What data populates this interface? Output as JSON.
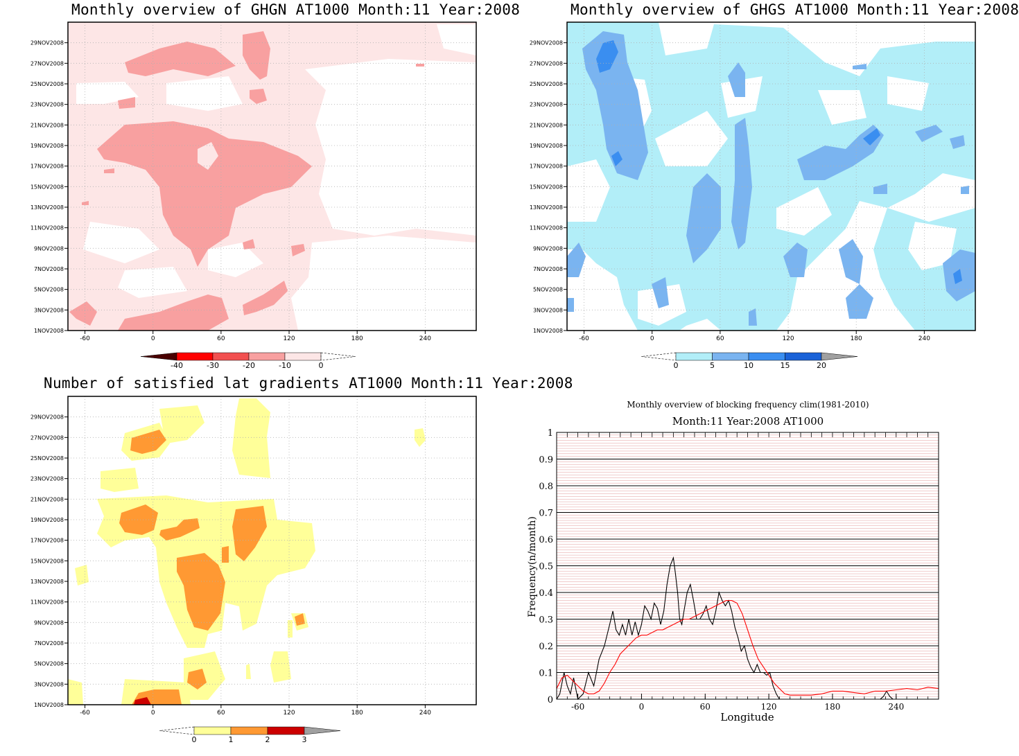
{
  "chart_data": [
    {
      "type": "heatmap",
      "title": "Monthly overview of GHGN AT1000 Month:11 Year:2008",
      "x_ticks": [
        "-60",
        "0",
        "60",
        "120",
        "180",
        "240"
      ],
      "xlim": [
        -75,
        285
      ],
      "y_ticks": [
        "1NOV2008",
        "3NOV2008",
        "5NOV2008",
        "7NOV2008",
        "9NOV2008",
        "11NOV2008",
        "13NOV2008",
        "15NOV2008",
        "17NOV2008",
        "19NOV2008",
        "21NOV2008",
        "23NOV2008",
        "25NOV2008",
        "27NOV2008",
        "29NOV2008"
      ],
      "colorbar": {
        "levels": [
          "-40",
          "-30",
          "-20",
          "-10",
          "0"
        ],
        "colors": [
          "#4a0000",
          "#ff0000",
          "#f25050",
          "#f8a0a0",
          "#fde6e6"
        ]
      },
      "grid": true
    },
    {
      "type": "heatmap",
      "title": "Monthly overview of GHGS AT1000 Month:11 Year:2008",
      "x_ticks": [
        "-60",
        "0",
        "60",
        "120",
        "180",
        "240"
      ],
      "xlim": [
        -75,
        285
      ],
      "y_ticks": [
        "1NOV2008",
        "3NOV2008",
        "5NOV2008",
        "7NOV2008",
        "9NOV2008",
        "11NOV2008",
        "13NOV2008",
        "15NOV2008",
        "17NOV2008",
        "19NOV2008",
        "21NOV2008",
        "23NOV2008",
        "25NOV2008",
        "27NOV2008",
        "29NOV2008"
      ],
      "colorbar": {
        "levels": [
          "0",
          "5",
          "10",
          "15",
          "20"
        ],
        "colors": [
          "#b2eef8",
          "#7ab4f0",
          "#3a8ef0",
          "#1a62d8",
          "#a0a0a0"
        ]
      },
      "grid": true
    },
    {
      "type": "heatmap",
      "title": "Number of satisfied lat gradients AT1000 Month:11 Year:2008",
      "x_ticks": [
        "-60",
        "0",
        "60",
        "120",
        "180",
        "240"
      ],
      "xlim": [
        -75,
        285
      ],
      "y_ticks": [
        "1NOV2008",
        "3NOV2008",
        "5NOV2008",
        "7NOV2008",
        "9NOV2008",
        "11NOV2008",
        "13NOV2008",
        "15NOV2008",
        "17NOV2008",
        "19NOV2008",
        "21NOV2008",
        "23NOV2008",
        "25NOV2008",
        "27NOV2008",
        "29NOV2008"
      ],
      "colorbar": {
        "levels": [
          "0",
          "1",
          "2",
          "3"
        ],
        "colors": [
          "#ffff99",
          "#ff9933",
          "#cc0000",
          "#a0a0a0"
        ]
      },
      "grid": true
    },
    {
      "type": "line",
      "title": "Monthly overview of blocking frequency clim(1981-2010)",
      "subtitle": "Month:11 Year:2008  AT1000",
      "xlabel": "Longitude",
      "ylabel": "Frequency(n/month)",
      "xlim": [
        -80,
        280
      ],
      "ylim": [
        0,
        1
      ],
      "x_ticks": [
        "-60",
        "0",
        "60",
        "120",
        "180",
        "240"
      ],
      "y_ticks": [
        "0",
        "0.1",
        "0.2",
        "0.3",
        "0.4",
        "0.5",
        "0.6",
        "0.7",
        "0.8",
        "0.9",
        "1"
      ],
      "series": [
        {
          "color": "#000000",
          "x": [
            -80,
            -77,
            -73,
            -70,
            -67,
            -64,
            -60,
            -55,
            -50,
            -45,
            -40,
            -35,
            -30,
            -27,
            -24,
            -21,
            -18,
            -15,
            -12,
            -9,
            -6,
            -3,
            0,
            3,
            6,
            9,
            12,
            15,
            18,
            21,
            24,
            27,
            30,
            32,
            34,
            36,
            38,
            40,
            43,
            46,
            49,
            52,
            55,
            58,
            61,
            64,
            67,
            70,
            73,
            76,
            79,
            82,
            85,
            88,
            91,
            94,
            97,
            100,
            103,
            106,
            109,
            112,
            115,
            118,
            121,
            124,
            127,
            130,
            135,
            140,
            150,
            160,
            170,
            180,
            190,
            200,
            210,
            215,
            220,
            225,
            228,
            231,
            234,
            237,
            240,
            250,
            260,
            270,
            280
          ],
          "y": [
            0.0,
            0.02,
            0.1,
            0.05,
            0.02,
            0.08,
            0.0,
            0.02,
            0.1,
            0.05,
            0.15,
            0.2,
            0.28,
            0.33,
            0.26,
            0.24,
            0.28,
            0.24,
            0.3,
            0.24,
            0.29,
            0.24,
            0.28,
            0.35,
            0.33,
            0.3,
            0.36,
            0.34,
            0.28,
            0.33,
            0.43,
            0.5,
            0.53,
            0.47,
            0.4,
            0.3,
            0.28,
            0.33,
            0.4,
            0.43,
            0.37,
            0.3,
            0.3,
            0.32,
            0.35,
            0.3,
            0.28,
            0.33,
            0.4,
            0.37,
            0.35,
            0.37,
            0.33,
            0.27,
            0.23,
            0.18,
            0.2,
            0.15,
            0.12,
            0.1,
            0.13,
            0.1,
            0.1,
            0.09,
            0.1,
            0.05,
            0.02,
            0.0,
            0.0,
            0.0,
            0.0,
            0.0,
            0.0,
            0.0,
            0.0,
            0.0,
            0.0,
            0.0,
            0.0,
            0.0,
            0.01,
            0.03,
            0.01,
            0.0,
            0.0,
            0.0,
            0.0,
            0.0,
            0.0
          ]
        },
        {
          "color": "#ff0000",
          "x": [
            -80,
            -75,
            -70,
            -65,
            -60,
            -55,
            -50,
            -45,
            -40,
            -35,
            -30,
            -25,
            -20,
            -15,
            -10,
            -5,
            0,
            5,
            10,
            15,
            20,
            25,
            30,
            35,
            40,
            45,
            50,
            55,
            60,
            65,
            70,
            75,
            80,
            85,
            90,
            95,
            100,
            105,
            110,
            115,
            120,
            125,
            130,
            135,
            140,
            150,
            160,
            170,
            180,
            190,
            200,
            210,
            220,
            230,
            240,
            250,
            260,
            270,
            280
          ],
          "y": [
            0.04,
            0.08,
            0.09,
            0.07,
            0.05,
            0.03,
            0.02,
            0.02,
            0.03,
            0.06,
            0.1,
            0.13,
            0.17,
            0.19,
            0.21,
            0.23,
            0.24,
            0.24,
            0.25,
            0.26,
            0.26,
            0.27,
            0.28,
            0.29,
            0.3,
            0.3,
            0.31,
            0.32,
            0.33,
            0.34,
            0.35,
            0.36,
            0.37,
            0.37,
            0.36,
            0.32,
            0.26,
            0.2,
            0.15,
            0.12,
            0.09,
            0.06,
            0.04,
            0.02,
            0.015,
            0.015,
            0.015,
            0.02,
            0.03,
            0.03,
            0.025,
            0.02,
            0.03,
            0.03,
            0.035,
            0.04,
            0.035,
            0.045,
            0.04
          ]
        }
      ]
    }
  ]
}
